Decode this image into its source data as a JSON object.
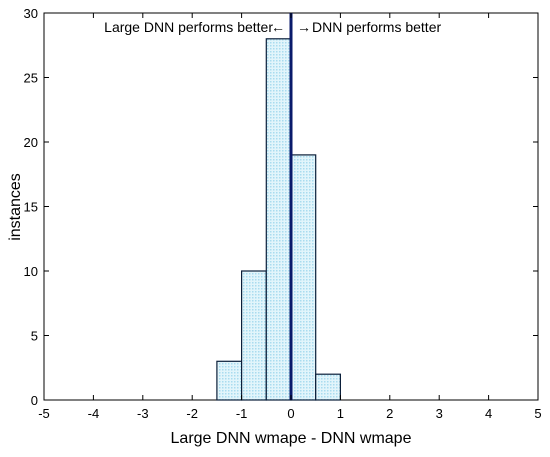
{
  "chart_data": {
    "type": "bar",
    "bin_edges": [
      -1.5,
      -1.0,
      -0.5,
      0.0,
      0.5,
      1.0
    ],
    "values": [
      3,
      10,
      28,
      19,
      2
    ],
    "xlim": [
      -5,
      5
    ],
    "ylim": [
      0,
      30
    ],
    "xticks": [
      -5,
      -4,
      -3,
      -2,
      -1,
      0,
      1,
      2,
      3,
      4,
      5
    ],
    "yticks": [
      0,
      5,
      10,
      15,
      20,
      25,
      30
    ],
    "xlabel": "Large DNN wmape - DNN wmape",
    "ylabel": "instances",
    "reference_line_x": 0,
    "annotation_left": "Large DNN performs better",
    "annotation_right": "DNN performs better",
    "bar_fill": "#d6f0f8",
    "bar_stroke": "#0b1f3a",
    "reference_line_color": "#0a1a6b",
    "grid": false
  }
}
